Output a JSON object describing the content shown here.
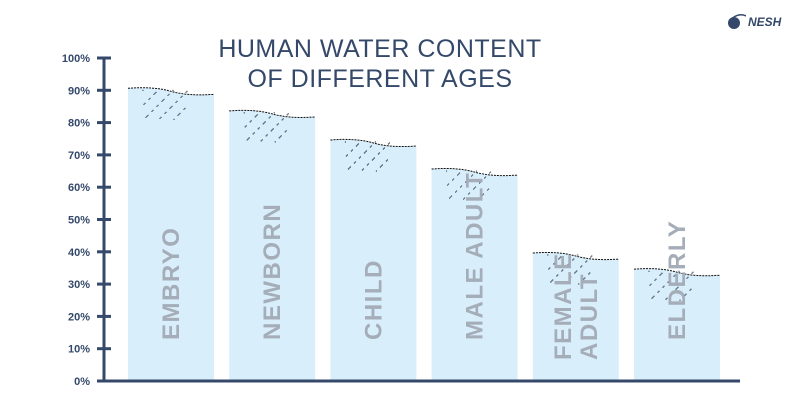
{
  "logo_text": "NESH",
  "chart_data": {
    "type": "bar",
    "title": "HUMAN WATER CONTENT OF DIFFERENT AGES",
    "title_lines": [
      "HUMAN WATER CONTENT",
      "OF DIFFERENT AGES"
    ],
    "categories": [
      "EMBRYO",
      "NEWBORN",
      "CHILD",
      "MALE ADULT",
      "FEMALE ADULT",
      "ELDERLY"
    ],
    "values": [
      90,
      83,
      74,
      65,
      39,
      34
    ],
    "unit": "%",
    "ylim": [
      0,
      100
    ],
    "yticks": [
      "0%",
      "10%",
      "20%",
      "30%",
      "40%",
      "50%",
      "60%",
      "70%",
      "80%",
      "90%",
      "100%"
    ],
    "xlabel": "",
    "ylabel": "",
    "colors": {
      "bar": "#d9eefb",
      "axis": "#34496a",
      "label": "#a4adb8"
    }
  }
}
